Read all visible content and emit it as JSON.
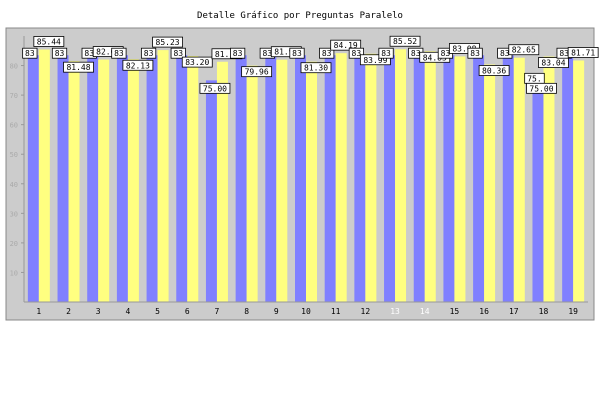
{
  "chart_data": {
    "type": "bar",
    "title": "Detalle Gráfico por Preguntas Paralelo",
    "xlabel": "",
    "ylabel": "",
    "ylim": [
      0,
      90
    ],
    "yticks": [
      10,
      20,
      30,
      40,
      50,
      60,
      70,
      80
    ],
    "grid": false,
    "legend": "none",
    "categories": [
      "1",
      "2",
      "3",
      "4",
      "5",
      "6",
      "7",
      "8",
      "9",
      "10",
      "11",
      "12",
      "13",
      "14",
      "15",
      "16",
      "17",
      "18",
      "19"
    ],
    "muted_categories": [
      "13",
      "14"
    ],
    "series": [
      {
        "color": "#8080ff",
        "values": [
          83.5,
          83.5,
          83.5,
          83.5,
          83.5,
          83.5,
          75.0,
          83.5,
          83.5,
          83.5,
          83.5,
          83.5,
          83.5,
          83.5,
          83.5,
          83.5,
          83.5,
          75.0,
          83.5
        ],
        "labels": [
          "83",
          "83",
          "83",
          "83",
          "83",
          "83",
          "",
          "83",
          "83",
          "83",
          "83",
          "83",
          "83",
          "83",
          "83",
          "83",
          "83",
          "75.",
          "83"
        ]
      },
      {
        "color": "#ffff80",
        "values": [
          85.44,
          81.48,
          82.02,
          82.13,
          85.23,
          83.2,
          81.28,
          79.96,
          81.98,
          81.3,
          84.19,
          83.99,
          85.52,
          84.83,
          83.08,
          80.36,
          82.65,
          83.04,
          81.71
        ],
        "labels": [
          "85.44",
          "81.48",
          "82.02",
          "82.13",
          "85.23",
          "83.20",
          "81.28",
          "79.96",
          "81.98",
          "81.30",
          "84.19",
          "83.99",
          "85.52",
          "84.83",
          "83.08",
          "80.36",
          "82.65",
          "83.04",
          "81.71"
        ]
      }
    ],
    "extra_labels": [
      {
        "category": "7",
        "text": "75.00"
      },
      {
        "category": "18",
        "text": "75.00"
      }
    ]
  }
}
